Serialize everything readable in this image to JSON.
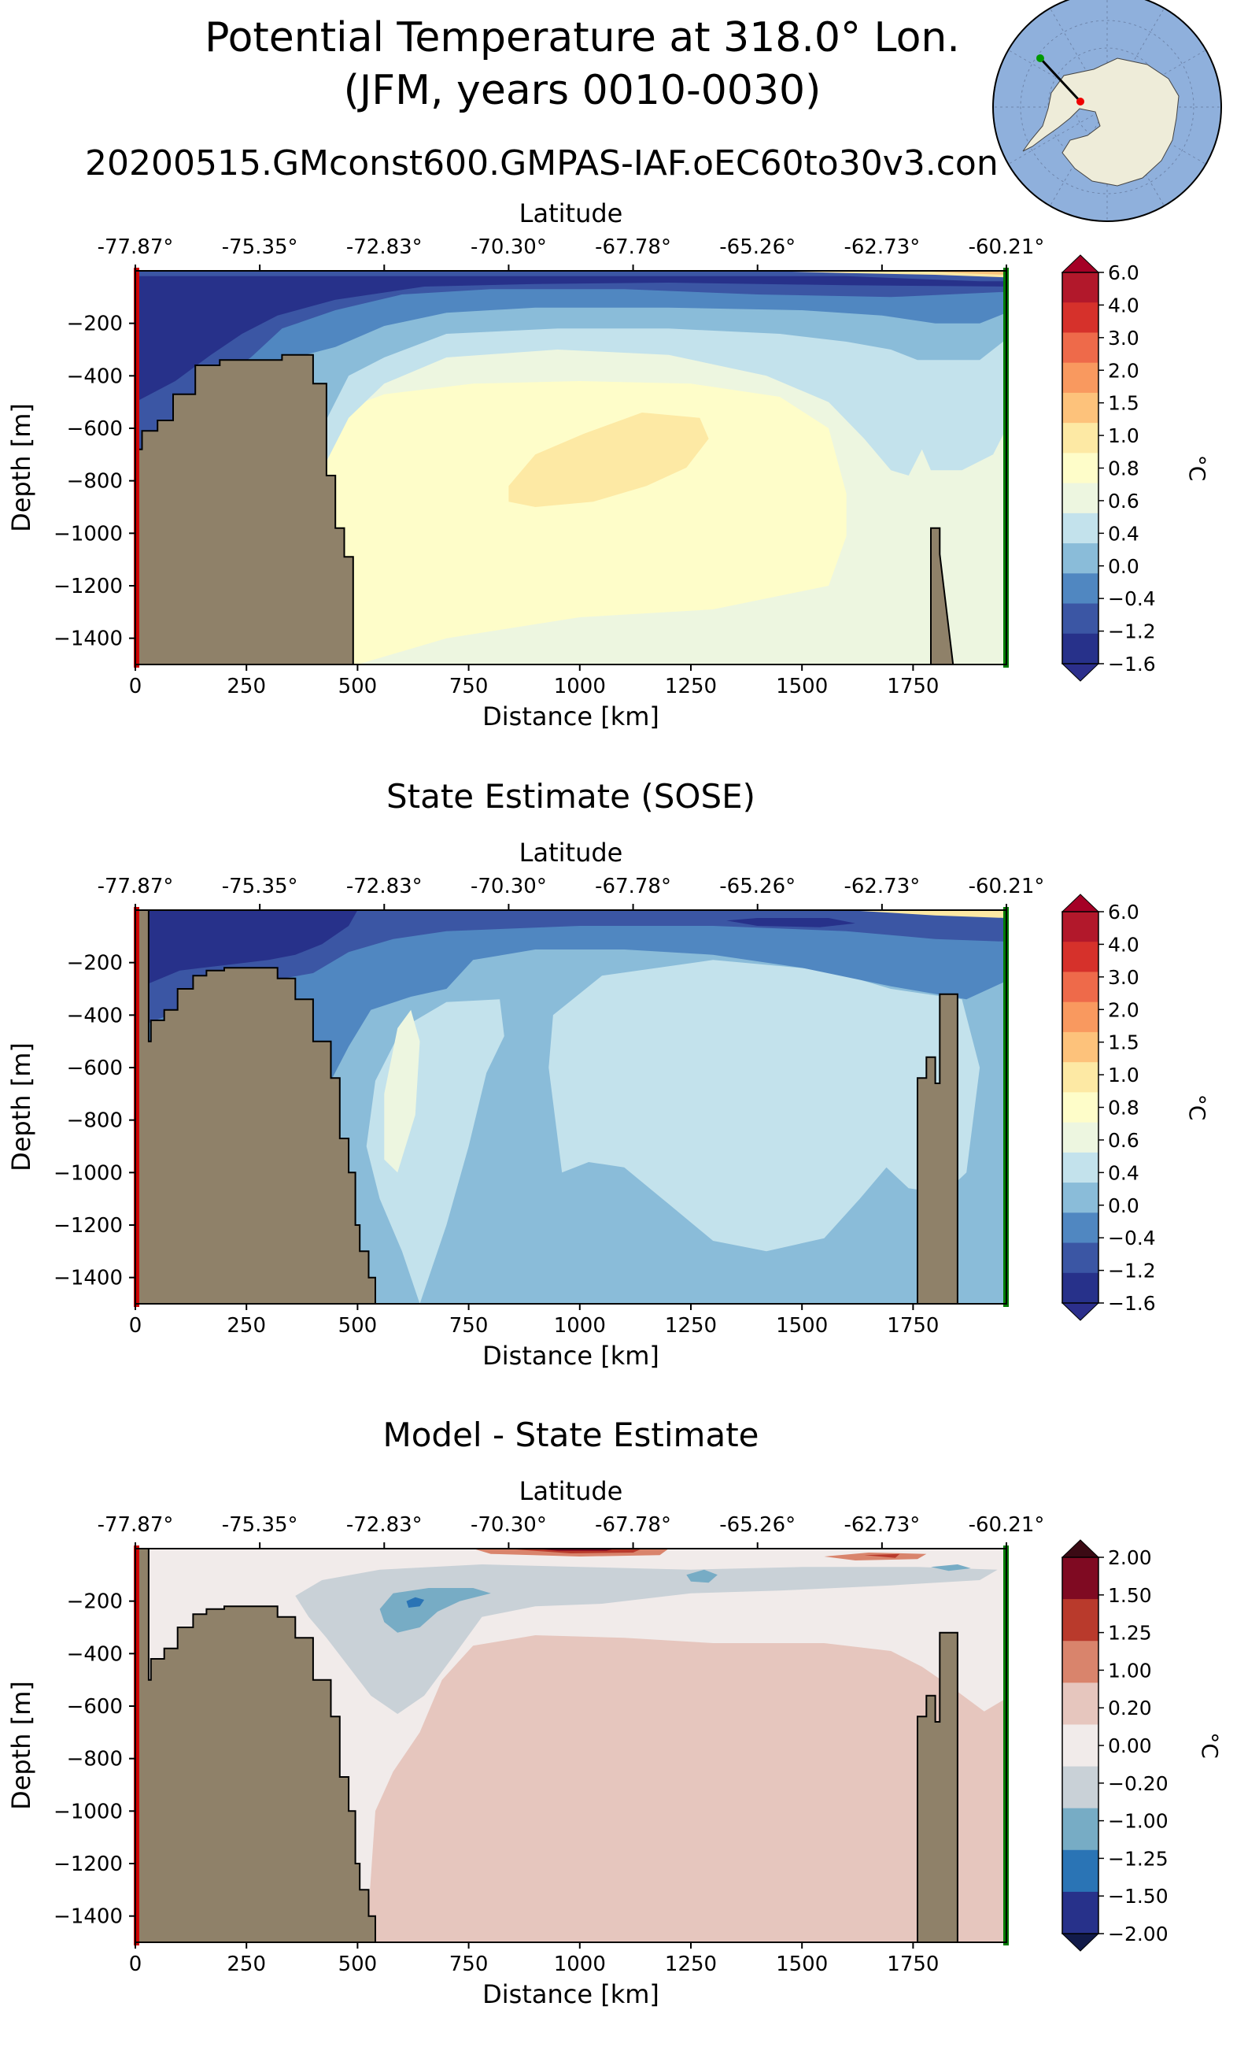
{
  "figure": {
    "title_line1": "Potential Temperature at 318.0° Lon.",
    "title_line2": "(JFM, years 0010-0030)",
    "run_name": "20200515.GMconst600.GMPAS-IAF.oEC60to30v3.con",
    "inset_map": "south-polar-stereographic-map-antarctica"
  },
  "chart_data": [
    {
      "type": "heatmap",
      "subtype": "filled-contour-transect",
      "title": "",
      "xlabel": "Distance [km]",
      "ylabel": "Depth [m]",
      "top_xlabel": "Latitude",
      "xlim": [
        0,
        1960
      ],
      "ylim": [
        -1500,
        0
      ],
      "x_ticks": [
        0,
        250,
        500,
        750,
        1000,
        1250,
        1500,
        1750
      ],
      "y_ticks": [
        -200,
        -400,
        -600,
        -800,
        -1000,
        -1200,
        -1400
      ],
      "latitude_ticks": [
        "-77.87°",
        "-75.35°",
        "-72.83°",
        "-70.30°",
        "-67.78°",
        "-65.26°",
        "-62.73°",
        "-60.21°"
      ],
      "colorbar": {
        "label": "°C",
        "levels": [
          "6.0",
          "4.0",
          "3.0",
          "2.0",
          "1.5",
          "1.0",
          "0.8",
          "0.6",
          "0.4",
          "0.0",
          "-0.4",
          "-1.2",
          "-1.6"
        ]
      },
      "regions": [
        {
          "name": "surface-cold-layer",
          "value_range": [
            -1.6,
            -1.2
          ],
          "x": [
            0,
            1960
          ],
          "depth": [
            0,
            120
          ]
        },
        {
          "name": "cold-shelf-water",
          "value_range": [
            -1.6,
            -1.2
          ],
          "x": [
            0,
            300
          ],
          "depth": [
            0,
            650
          ]
        },
        {
          "name": "warm-core",
          "value_range": [
            0.8,
            1.0
          ],
          "x": [
            840,
            1290
          ],
          "depth": [
            520,
            920
          ]
        },
        {
          "name": "deep-water",
          "value_range": [
            0.4,
            0.6
          ],
          "x": [
            500,
            1950
          ],
          "depth": [
            600,
            1500
          ]
        }
      ],
      "bathymetry": {
        "distance_km": [
          0,
          15,
          15,
          50,
          50,
          85,
          85,
          135,
          135,
          190,
          190,
          330,
          330,
          400,
          400,
          430,
          430,
          450,
          450,
          470,
          470,
          490,
          490
        ],
        "depth_m": [
          -680,
          -680,
          -610,
          -610,
          -570,
          -570,
          -470,
          -470,
          -360,
          -360,
          -340,
          -340,
          -320,
          -320,
          -430,
          -430,
          -780,
          -780,
          -980,
          -980,
          -1090,
          -1090,
          -1500
        ]
      },
      "ridge": {
        "distance_km": [
          1790,
          1790,
          1810,
          1810,
          1840
        ],
        "depth_m": [
          -1500,
          -980,
          -980,
          -1080,
          -1500
        ]
      }
    },
    {
      "type": "heatmap",
      "subtype": "filled-contour-transect",
      "title": "State Estimate (SOSE)",
      "xlabel": "Distance [km]",
      "ylabel": "Depth [m]",
      "top_xlabel": "Latitude",
      "xlim": [
        0,
        1960
      ],
      "ylim": [
        -1500,
        0
      ],
      "x_ticks": [
        0,
        250,
        500,
        750,
        1000,
        1250,
        1500,
        1750
      ],
      "y_ticks": [
        -200,
        -400,
        -600,
        -800,
        -1000,
        -1200,
        -1400
      ],
      "latitude_ticks": [
        "-77.87°",
        "-75.35°",
        "-72.83°",
        "-70.30°",
        "-67.78°",
        "-65.26°",
        "-62.73°",
        "-60.21°"
      ],
      "colorbar": {
        "label": "°C",
        "levels": [
          "6.0",
          "4.0",
          "3.0",
          "2.0",
          "1.5",
          "1.0",
          "0.8",
          "0.6",
          "0.4",
          "0.0",
          "-0.4",
          "-1.2",
          "-1.6"
        ]
      },
      "regions": [
        {
          "name": "surface-cold-layer",
          "value_range": [
            -1.6,
            -1.2
          ],
          "x": [
            0,
            1960
          ],
          "depth": [
            0,
            150
          ]
        },
        {
          "name": "cold-shelf-water",
          "value_range": [
            -1.6,
            -1.2
          ],
          "x": [
            30,
            420
          ],
          "depth": [
            0,
            500
          ]
        },
        {
          "name": "cdw-lens",
          "value_range": [
            0.4,
            0.6
          ],
          "x": [
            540,
            640
          ],
          "depth": [
            380,
            1000
          ]
        },
        {
          "name": "upper-deep-water",
          "value_range": [
            0.0,
            0.4
          ],
          "x": [
            960,
            1840
          ],
          "depth": [
            200,
            1300
          ]
        },
        {
          "name": "deep-water",
          "value_range": [
            -0.4,
            0.0
          ],
          "x": [
            500,
            1950
          ],
          "depth": [
            600,
            1500
          ]
        }
      ],
      "bathymetry": {
        "distance_km": [
          0,
          30,
          30,
          35,
          35,
          65,
          65,
          95,
          95,
          130,
          130,
          160,
          160,
          200,
          200,
          320,
          320,
          360,
          360,
          400,
          400,
          440,
          440,
          460,
          460,
          480,
          480,
          495,
          495,
          505,
          505,
          525,
          525,
          540,
          540
        ],
        "depth_m": [
          0,
          0,
          -500,
          -500,
          -420,
          -420,
          -380,
          -380,
          -300,
          -300,
          -250,
          -250,
          -230,
          -230,
          -220,
          -220,
          -260,
          -260,
          -340,
          -340,
          -500,
          -500,
          -640,
          -640,
          -870,
          -870,
          -1000,
          -1000,
          -1200,
          -1200,
          -1300,
          -1300,
          -1400,
          -1400,
          -1500
        ]
      },
      "ridge": {
        "distance_km": [
          1760,
          1760,
          1780,
          1780,
          1800,
          1800,
          1810,
          1810,
          1850,
          1850,
          1880
        ],
        "depth_m": [
          -1500,
          -640,
          -640,
          -560,
          -560,
          -660,
          -660,
          -320,
          -320,
          -1500,
          -1500
        ]
      }
    },
    {
      "type": "heatmap",
      "subtype": "filled-contour-transect",
      "title": "Model - State Estimate",
      "xlabel": "Distance [km]",
      "ylabel": "Depth [m]",
      "top_xlabel": "Latitude",
      "xlim": [
        0,
        1960
      ],
      "ylim": [
        -1500,
        0
      ],
      "x_ticks": [
        0,
        250,
        500,
        750,
        1000,
        1250,
        1500,
        1750
      ],
      "y_ticks": [
        -200,
        -400,
        -600,
        -800,
        -1000,
        -1200,
        -1400
      ],
      "latitude_ticks": [
        "-77.87°",
        "-75.35°",
        "-72.83°",
        "-70.30°",
        "-67.78°",
        "-65.26°",
        "-62.73°",
        "-60.21°"
      ],
      "colorbar": {
        "label": "°C",
        "levels": [
          "2.00",
          "1.50",
          "1.25",
          "1.00",
          "0.20",
          "0.00",
          "-0.20",
          "-1.00",
          "-1.25",
          "-1.50",
          "-2.00"
        ]
      },
      "regions": [
        {
          "name": "surface-warm-anomaly",
          "value_range": [
            1.25,
            2.0
          ],
          "x": [
            780,
            1180
          ],
          "depth": [
            0,
            20
          ]
        },
        {
          "name": "cool-anomaly-tongue",
          "value_range": [
            -1.0,
            -0.2
          ],
          "x": [
            360,
            1940
          ],
          "depth": [
            60,
            700
          ]
        },
        {
          "name": "cool-anomaly-core",
          "value_range": [
            -1.5,
            -1.25
          ],
          "x": [
            550,
            790
          ],
          "depth": [
            150,
            320
          ]
        },
        {
          "name": "deep-warm-anomaly",
          "value_range": [
            0.2,
            1.0
          ],
          "x": [
            520,
            1950
          ],
          "depth": [
            300,
            1500
          ]
        }
      ],
      "bathymetry": {
        "distance_km": [
          0,
          30,
          30,
          35,
          35,
          65,
          65,
          95,
          95,
          130,
          130,
          160,
          160,
          200,
          200,
          320,
          320,
          360,
          360,
          400,
          400,
          440,
          440,
          460,
          460,
          480,
          480,
          495,
          495,
          505,
          505,
          525,
          525,
          540,
          540
        ],
        "depth_m": [
          0,
          0,
          -500,
          -500,
          -420,
          -420,
          -380,
          -380,
          -300,
          -300,
          -250,
          -250,
          -230,
          -230,
          -220,
          -220,
          -260,
          -260,
          -340,
          -340,
          -500,
          -500,
          -640,
          -640,
          -870,
          -870,
          -1000,
          -1000,
          -1200,
          -1200,
          -1300,
          -1300,
          -1400,
          -1400,
          -1500
        ]
      },
      "ridge": {
        "distance_km": [
          1760,
          1760,
          1780,
          1780,
          1800,
          1800,
          1810,
          1810,
          1850,
          1850,
          1880
        ],
        "depth_m": [
          -1500,
          -640,
          -640,
          -560,
          -560,
          -660,
          -660,
          -320,
          -320,
          -1500,
          -1500
        ]
      }
    }
  ],
  "colors": {
    "land": "#8f8169",
    "section_start": "#d00000",
    "section_end": "#007a00",
    "temp_levels": [
      "#b2182b",
      "#d6312b",
      "#ee6a4a",
      "#f9995f",
      "#fdc27b",
      "#fde9a4",
      "#fefdc9",
      "#edf6e0",
      "#c3e2ec",
      "#8abcd9",
      "#5087c1",
      "#3b56a4",
      "#27318a"
    ],
    "diff_levels": [
      "#7f0a22",
      "#b93a2c",
      "#d9846c",
      "#e6c6be",
      "#f1ebea",
      "#c9d1d7",
      "#77acc5",
      "#2a74b5",
      "#27318a"
    ]
  }
}
